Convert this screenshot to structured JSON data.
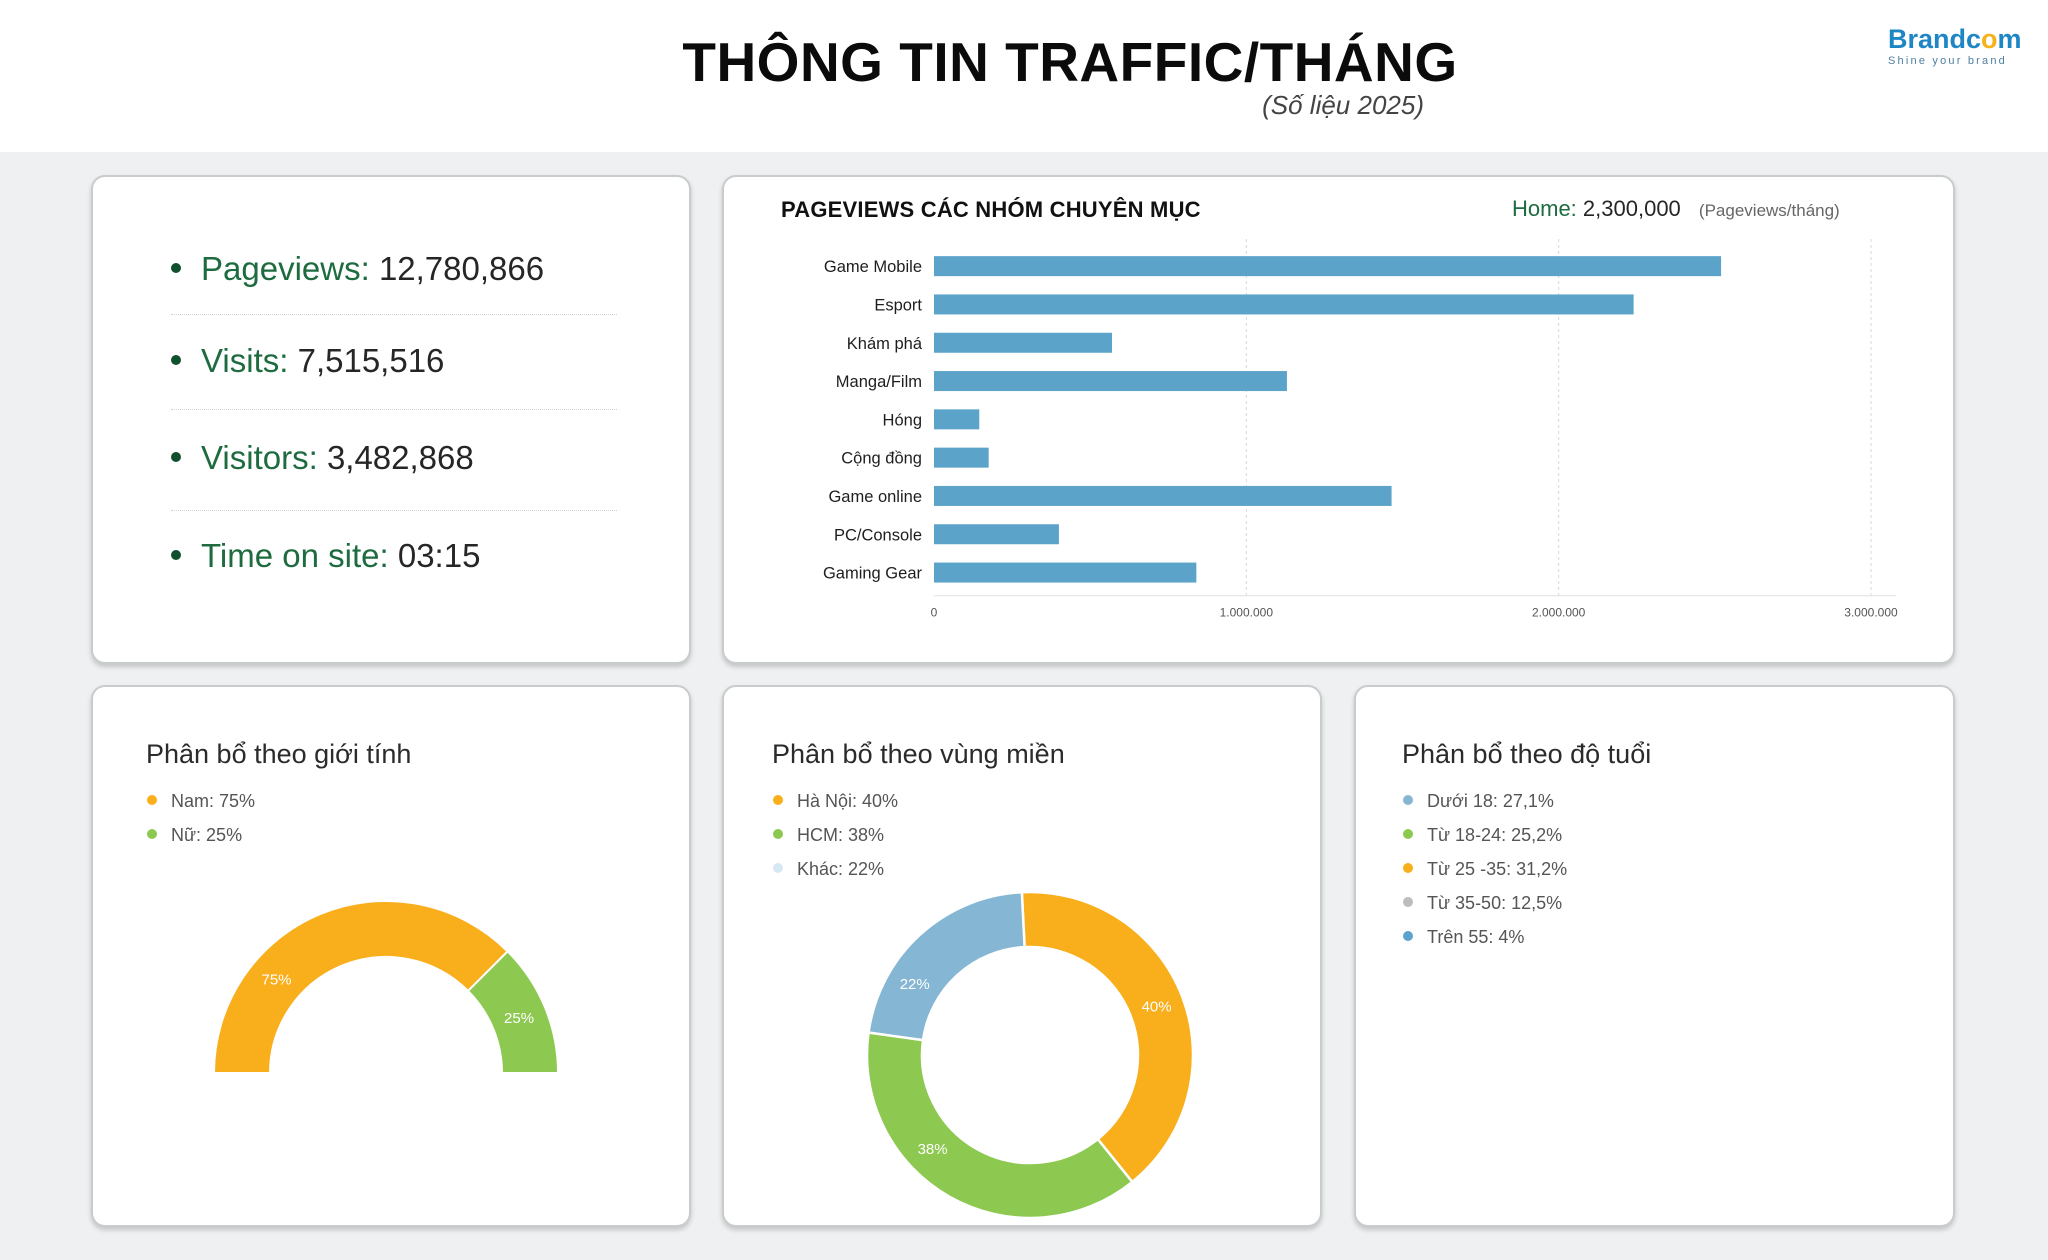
{
  "header": {
    "title": "THÔNG TIN TRAFFIC/THÁNG",
    "subtitle": "(Số liệu 2025)",
    "logo": {
      "brand": "Brandcom",
      "tagline": "Shine your brand"
    }
  },
  "colors": {
    "accent_green": "#1d6b3f",
    "bar_blue": "#5ba3c9",
    "orange": "#f9ae1c",
    "light_green": "#8dc950",
    "light_blue": "#85b6d3",
    "pale_blue": "#d6e8f3",
    "grey": "#bdbdbd"
  },
  "stats": [
    {
      "label": "Pageviews:",
      "value": "12,780,866"
    },
    {
      "label": "Visits:",
      "value": "7,515,516"
    },
    {
      "label": "Visitors:",
      "value": "3,482,868"
    },
    {
      "label": "Time on site:",
      "value": "03:15"
    }
  ],
  "pageviews_card": {
    "title": "PAGEVIEWS CÁC NHÓM CHUYÊN MỤC",
    "home_label": "Home:",
    "home_value": "2,300,000",
    "unit": "(Pageviews/tháng)"
  },
  "gender_card": {
    "title": "Phân bổ theo giới tính",
    "legend": [
      {
        "text": "Nam: 75%",
        "color": "#f9ae1c"
      },
      {
        "text": "Nữ: 25%",
        "color": "#8dc950"
      }
    ]
  },
  "region_card": {
    "title": "Phân bổ theo vùng miền",
    "legend": [
      {
        "text": "Hà Nội: 40%",
        "color": "#f9ae1c"
      },
      {
        "text": "HCM: 38%",
        "color": "#8dc950"
      },
      {
        "text": "Khác: 22%",
        "color": "#d6e8f3"
      }
    ]
  },
  "age_card": {
    "title": "Phân bổ theo độ tuổi",
    "legend": [
      {
        "text": "Dưới 18: 27,1%",
        "color": "#85b6d3"
      },
      {
        "text": "Từ 18-24: 25,2%",
        "color": "#8dc950"
      },
      {
        "text": "Từ 25 -35: 31,2%",
        "color": "#f9ae1c"
      },
      {
        "text": "Từ 35-50: 12,5%",
        "color": "#bdbdbd"
      },
      {
        "text": "Trên 55: 4%",
        "color": "#5ba3c9"
      }
    ]
  },
  "chart_data": [
    {
      "type": "bar",
      "orientation": "horizontal",
      "title": "PAGEVIEWS CÁC NHÓM CHUYÊN MỤC",
      "categories": [
        "Game Mobile",
        "Esport",
        "Khám phá",
        "Manga/Film",
        "Hóng",
        "Cộng đồng",
        "Game online",
        "PC/Console",
        "Gaming Gear"
      ],
      "values": [
        2520000,
        2240000,
        570000,
        1130000,
        145000,
        175000,
        1465000,
        400000,
        840000
      ],
      "xlim": [
        0,
        3000000
      ],
      "x_ticks": [
        0,
        1000000,
        2000000,
        3000000
      ],
      "x_tick_labels": [
        "0",
        "1.000.000",
        "2.000.000",
        "3.000.000"
      ],
      "grid": true,
      "color": "#5ba3c9"
    },
    {
      "type": "pie",
      "variant": "half-donut",
      "title": "Phân bổ theo giới tính",
      "labels": [
        "Nam",
        "Nữ"
      ],
      "values": [
        75,
        25
      ],
      "slice_labels": [
        "75%",
        "25%"
      ],
      "colors": [
        "#f9ae1c",
        "#8dc950"
      ]
    },
    {
      "type": "pie",
      "variant": "donut",
      "title": "Phân bổ theo vùng miền",
      "labels": [
        "Hà Nội",
        "HCM",
        "Khác"
      ],
      "values": [
        40,
        38,
        22
      ],
      "slice_labels": [
        "40%",
        "38%",
        "22%"
      ],
      "colors": [
        "#f9ae1c",
        "#8dc950",
        "#85b6d3"
      ]
    },
    {
      "type": "pie",
      "title": "Phân bổ theo độ tuổi",
      "labels": [
        "Dưới 18",
        "Từ 18-24",
        "Từ 25 -35",
        "Từ 35-50",
        "Trên 55"
      ],
      "values": [
        27.1,
        25.2,
        31.2,
        12.5,
        4
      ],
      "colors": [
        "#85b6d3",
        "#8dc950",
        "#f9ae1c",
        "#bdbdbd",
        "#5ba3c9"
      ],
      "rendered": false
    }
  ]
}
